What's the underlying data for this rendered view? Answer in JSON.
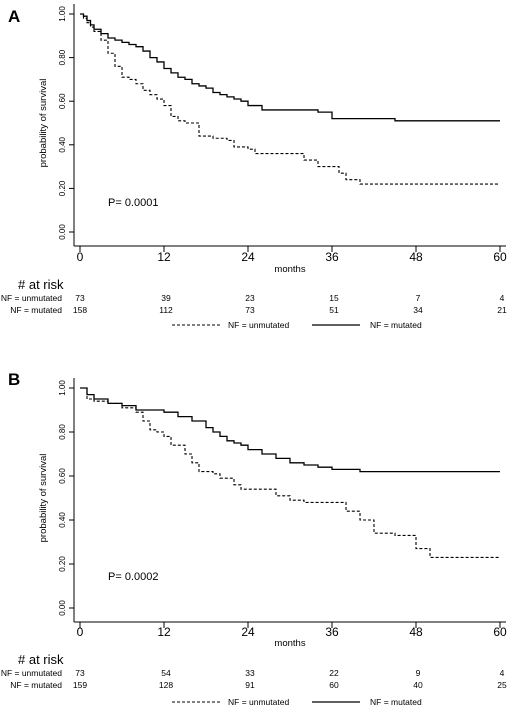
{
  "chart_data": [
    {
      "type": "line",
      "panel_label": "A",
      "xlabel": "months",
      "ylabel": "probability of survival",
      "x_ticks": [
        0,
        12,
        24,
        36,
        48,
        60
      ],
      "y_ticks": [
        "0.00",
        "0.20",
        "0.40",
        "0.60",
        "0.80",
        "1.00"
      ],
      "xlim": [
        0,
        60
      ],
      "ylim": [
        0,
        1
      ],
      "annotation": "P= 0.0001",
      "risk_title": "# at risk",
      "risk_table": [
        {
          "label": "NF = unmutated",
          "values": [
            "73",
            "39",
            "23",
            "15",
            "7",
            "4"
          ]
        },
        {
          "label": "NF = mutated",
          "values": [
            "158",
            "112",
            "73",
            "51",
            "34",
            "21"
          ]
        }
      ],
      "legend": [
        "NF = unmutated",
        "NF = mutated"
      ],
      "series": [
        {
          "name": "NF = unmutated",
          "style": "dashed",
          "x": [
            0,
            0.5,
            1,
            1.5,
            2,
            3,
            4,
            5,
            6,
            7,
            8,
            9,
            10,
            11,
            12,
            13,
            14,
            15,
            17,
            19,
            21,
            22,
            24,
            25,
            28,
            32,
            34,
            37,
            38,
            40,
            60
          ],
          "y": [
            1.0,
            0.98,
            0.96,
            0.94,
            0.92,
            0.88,
            0.82,
            0.76,
            0.71,
            0.7,
            0.68,
            0.65,
            0.63,
            0.61,
            0.58,
            0.53,
            0.51,
            0.5,
            0.44,
            0.43,
            0.42,
            0.39,
            0.38,
            0.36,
            0.36,
            0.33,
            0.3,
            0.27,
            0.24,
            0.22,
            0.22
          ]
        },
        {
          "name": "NF = mutated",
          "style": "solid",
          "x": [
            0,
            0.5,
            1,
            1.5,
            2,
            3,
            4,
            5,
            6,
            7,
            8,
            9,
            10,
            11,
            12,
            13,
            14,
            15,
            16,
            17,
            18,
            19,
            20,
            21,
            22,
            23,
            24,
            26,
            30,
            34,
            36,
            45,
            60
          ],
          "y": [
            1.0,
            0.99,
            0.97,
            0.95,
            0.93,
            0.91,
            0.89,
            0.88,
            0.87,
            0.86,
            0.85,
            0.83,
            0.8,
            0.78,
            0.75,
            0.73,
            0.71,
            0.7,
            0.68,
            0.67,
            0.66,
            0.64,
            0.63,
            0.62,
            0.61,
            0.6,
            0.58,
            0.56,
            0.56,
            0.55,
            0.52,
            0.51,
            0.51
          ]
        }
      ]
    },
    {
      "type": "line",
      "panel_label": "B",
      "xlabel": "months",
      "ylabel": "probability of survival",
      "x_ticks": [
        0,
        12,
        24,
        36,
        48,
        60
      ],
      "y_ticks": [
        "0.00",
        "0.20",
        "0.40",
        "0.60",
        "0.80",
        "1.00"
      ],
      "xlim": [
        0,
        60
      ],
      "ylim": [
        0,
        1
      ],
      "annotation": "P= 0.0002",
      "risk_title": "# at risk",
      "risk_table": [
        {
          "label": "NF = unmutated",
          "values": [
            "73",
            "54",
            "33",
            "22",
            "9",
            "4"
          ]
        },
        {
          "label": "NF = mutated",
          "values": [
            "159",
            "128",
            "91",
            "60",
            "40",
            "25"
          ]
        }
      ],
      "legend": [
        "NF = unmutated",
        "NF = mutated"
      ],
      "series": [
        {
          "name": "NF = unmutated",
          "style": "dashed",
          "x": [
            0,
            1,
            2,
            4,
            6,
            8,
            9,
            10,
            11,
            12,
            13,
            15,
            16,
            17,
            19,
            20,
            22,
            23,
            24,
            28,
            30,
            32,
            38,
            40,
            42,
            45,
            48,
            50,
            60
          ],
          "y": [
            1.0,
            0.95,
            0.94,
            0.93,
            0.91,
            0.89,
            0.85,
            0.81,
            0.8,
            0.78,
            0.74,
            0.7,
            0.66,
            0.62,
            0.61,
            0.59,
            0.56,
            0.54,
            0.54,
            0.51,
            0.49,
            0.48,
            0.44,
            0.4,
            0.34,
            0.33,
            0.27,
            0.23,
            0.23
          ]
        },
        {
          "name": "NF = mutated",
          "style": "solid",
          "x": [
            0,
            1,
            2,
            4,
            6,
            8,
            10,
            12,
            14,
            16,
            18,
            19,
            20,
            21,
            22,
            23,
            24,
            26,
            28,
            30,
            32,
            34,
            36,
            40,
            48,
            60
          ],
          "y": [
            1.0,
            0.97,
            0.95,
            0.93,
            0.92,
            0.9,
            0.9,
            0.89,
            0.87,
            0.85,
            0.82,
            0.8,
            0.78,
            0.76,
            0.75,
            0.74,
            0.72,
            0.7,
            0.68,
            0.66,
            0.65,
            0.64,
            0.63,
            0.62,
            0.62,
            0.62
          ]
        }
      ]
    }
  ]
}
